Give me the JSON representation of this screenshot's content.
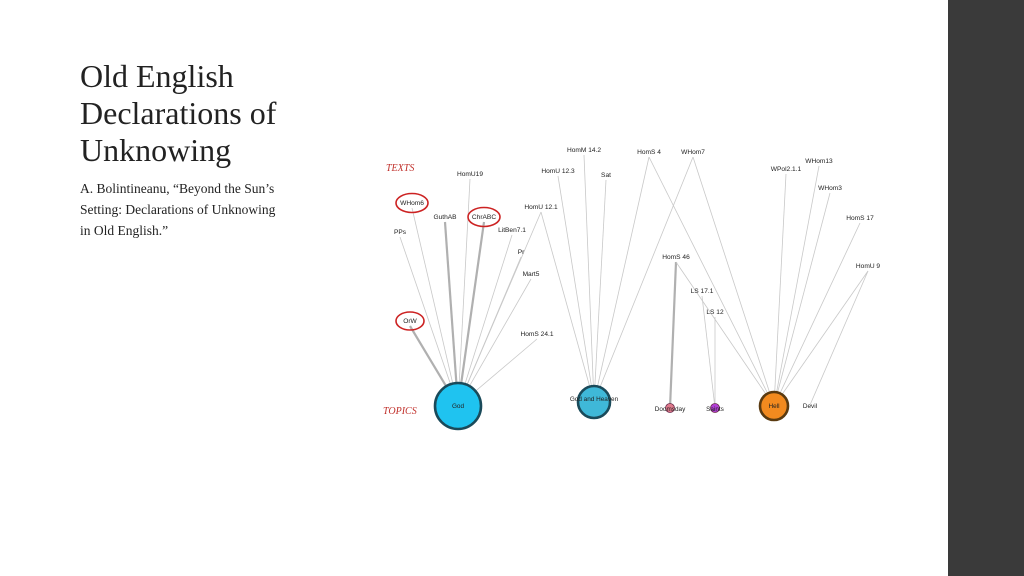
{
  "slide": {
    "title_lines": [
      "Old English",
      "Declarations of",
      "Unknowing"
    ],
    "citation_lines": [
      "A. Bolintineanu, “Beyond the Sun’s",
      "Setting:  Declarations of Unknowing",
      "in Old English.”"
    ]
  },
  "diagram": {
    "section_texts": "TEXTS",
    "section_topics": "TOPICS",
    "colors": {
      "highlight": "#cc2222",
      "edge": "#c8c8c8",
      "topic_god": "#1fc3f0",
      "topic_god_heaven": "#3fb8d8",
      "topic_doomsday": "#e07a8c",
      "topic_saints": "#b23fd6",
      "topic_hell": "#f28a1f",
      "topic_devil": "#f0d060"
    },
    "texts": [
      {
        "id": "WHom6",
        "label": "WHom6",
        "highlighted": true
      },
      {
        "id": "PPs",
        "label": "PPs",
        "highlighted": false
      },
      {
        "id": "GuthAB",
        "label": "GuthAB",
        "highlighted": false
      },
      {
        "id": "ChrABC",
        "label": "ChrABC",
        "highlighted": true
      },
      {
        "id": "LitBen7.1",
        "label": "LitBen7.1",
        "highlighted": false
      },
      {
        "id": "HomU19",
        "label": "HomU19",
        "highlighted": false
      },
      {
        "id": "HomU12.1",
        "label": "HomU 12.1",
        "highlighted": false
      },
      {
        "id": "Pr",
        "label": "Pr",
        "highlighted": false
      },
      {
        "id": "Mart5",
        "label": "Mart5",
        "highlighted": false
      },
      {
        "id": "OrW",
        "label": "OrW",
        "highlighted": true
      },
      {
        "id": "HomS24.1",
        "label": "HomS 24.1",
        "highlighted": false
      },
      {
        "id": "HomU12.3",
        "label": "HomU 12.3",
        "highlighted": false
      },
      {
        "id": "Sat",
        "label": "Sat",
        "highlighted": false
      },
      {
        "id": "HomM14.2",
        "label": "HomM 14.2",
        "highlighted": false
      },
      {
        "id": "HomS4",
        "label": "HomS 4",
        "highlighted": false
      },
      {
        "id": "WHom7",
        "label": "WHom7",
        "highlighted": false
      },
      {
        "id": "HomS46",
        "label": "HomS 46",
        "highlighted": false
      },
      {
        "id": "LS17.1",
        "label": "LS 17.1",
        "highlighted": false
      },
      {
        "id": "LS12",
        "label": "LS 12",
        "highlighted": false
      },
      {
        "id": "WHom13",
        "label": "WHom13",
        "highlighted": false
      },
      {
        "id": "WPol2.1.1",
        "label": "WPol2.1.1",
        "highlighted": false
      },
      {
        "id": "WHom3",
        "label": "WHom3",
        "highlighted": false
      },
      {
        "id": "HomS17",
        "label": "HomS 17",
        "highlighted": false
      },
      {
        "id": "HomU9",
        "label": "HomU 9",
        "highlighted": false
      }
    ],
    "topics": [
      {
        "id": "God",
        "label": "God",
        "color": "#1fc3f0"
      },
      {
        "id": "GodHeaven",
        "label": "God and Heaven",
        "color": "#3fb8d8"
      },
      {
        "id": "Doomsday",
        "label": "Doomsday",
        "color": "#e07a8c"
      },
      {
        "id": "Saints",
        "label": "Saints",
        "color": "#b23fd6"
      },
      {
        "id": "Hell",
        "label": "Hell",
        "color": "#f28a1f"
      },
      {
        "id": "Devil",
        "label": "Devil",
        "color": "#f0d060"
      }
    ],
    "edges": [
      [
        "WHom6",
        "God"
      ],
      [
        "PPs",
        "God"
      ],
      [
        "GuthAB",
        "God"
      ],
      [
        "ChrABC",
        "God"
      ],
      [
        "LitBen7.1",
        "God"
      ],
      [
        "HomU19",
        "God"
      ],
      [
        "HomU12.1",
        "God"
      ],
      [
        "Pr",
        "God"
      ],
      [
        "Mart5",
        "God"
      ],
      [
        "OrW",
        "God"
      ],
      [
        "HomS24.1",
        "God"
      ],
      [
        "HomU12.3",
        "GodHeaven"
      ],
      [
        "Sat",
        "GodHeaven"
      ],
      [
        "HomM14.2",
        "GodHeaven"
      ],
      [
        "HomS4",
        "GodHeaven"
      ],
      [
        "WHom7",
        "GodHeaven"
      ],
      [
        "HomU12.1",
        "GodHeaven"
      ],
      [
        "HomS46",
        "Doomsday"
      ],
      [
        "LS17.1",
        "Saints"
      ],
      [
        "LS12",
        "Saints"
      ],
      [
        "HomS4",
        "Hell"
      ],
      [
        "WHom7",
        "Hell"
      ],
      [
        "WHom13",
        "Hell"
      ],
      [
        "WPol2.1.1",
        "Hell"
      ],
      [
        "WHom3",
        "Hell"
      ],
      [
        "HomS17",
        "Hell"
      ],
      [
        "HomU9",
        "Hell"
      ],
      [
        "HomS46",
        "Hell"
      ],
      [
        "HomU9",
        "Devil"
      ]
    ],
    "strong_edges": [
      [
        "GuthAB",
        "God"
      ],
      [
        "ChrABC",
        "God"
      ],
      [
        "OrW",
        "God"
      ],
      [
        "HomS46",
        "Doomsday"
      ]
    ]
  }
}
